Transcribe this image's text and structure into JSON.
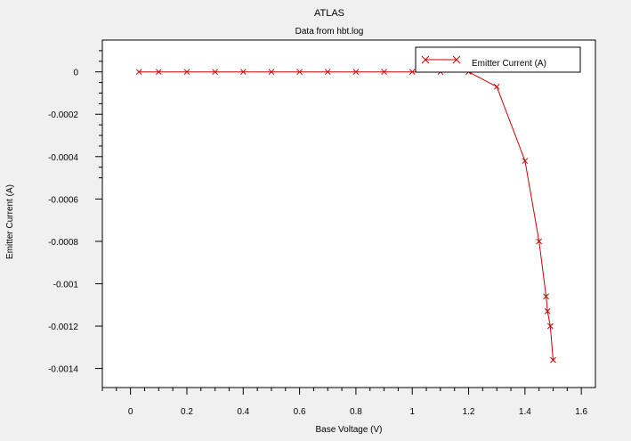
{
  "chart_data": {
    "type": "line",
    "title": "ATLAS",
    "subtitle": "Data from hbt.log",
    "xlabel": "Base Voltage (V)",
    "ylabel": "Emitter Current (A)",
    "xlim": [
      -0.1,
      1.65
    ],
    "ylim": [
      -0.00149,
      0.00015
    ],
    "xticks": [
      0,
      0.2,
      0.4,
      0.6,
      0.8,
      1,
      1.2,
      1.4,
      1.6
    ],
    "xtick_labels": [
      "0",
      "0.2",
      "0.4",
      "0.6",
      "0.8",
      "1",
      "1.2",
      "1.4",
      "1.6"
    ],
    "yticks": [
      0,
      -0.0002,
      -0.0004,
      -0.0006,
      -0.0008,
      -0.001,
      -0.0012,
      -0.0014
    ],
    "ytick_labels": [
      "0",
      "-0.0002",
      "-0.0004",
      "-0.0006",
      "-0.0008",
      "-0.001",
      "-0.0012",
      "-0.0014"
    ],
    "grid": false,
    "legend_position": "top-right",
    "series": [
      {
        "name": "Emitter Current (A)",
        "color": "#cc0000",
        "marker": "x",
        "x": [
          0.03,
          0.1,
          0.2,
          0.3,
          0.4,
          0.5,
          0.6,
          0.7,
          0.8,
          0.9,
          1.0,
          1.1,
          1.2,
          1.3,
          1.4,
          1.45,
          1.475,
          1.48,
          1.49,
          1.5
        ],
        "y": [
          0,
          0,
          0,
          0,
          0,
          0,
          0,
          0,
          0,
          0,
          0,
          0,
          0,
          -7e-05,
          -0.00042,
          -0.0008,
          -0.00106,
          -0.00113,
          -0.0012,
          -0.00136
        ]
      }
    ]
  }
}
